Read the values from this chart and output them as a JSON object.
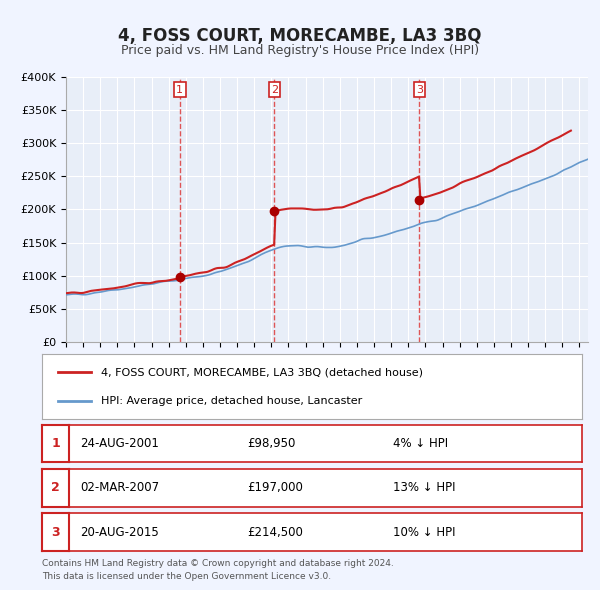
{
  "title": "4, FOSS COURT, MORECAMBE, LA3 3BQ",
  "subtitle": "Price paid vs. HM Land Registry's House Price Index (HPI)",
  "title_fontsize": 13,
  "subtitle_fontsize": 10,
  "bg_color": "#f0f4ff",
  "plot_bg_color": "#f0f4ff",
  "grid_color": "#ffffff",
  "hpi_color": "#6699cc",
  "price_color": "#cc2222",
  "sale_marker_color": "#aa0000",
  "vline_color": "#dd4444",
  "ylim": [
    0,
    400000
  ],
  "yticks": [
    0,
    50000,
    100000,
    150000,
    200000,
    250000,
    300000,
    350000,
    400000
  ],
  "ylabel_format": "£{0}K",
  "legend_entries": [
    "4, FOSS COURT, MORECAMBE, LA3 3BQ (detached house)",
    "HPI: Average price, detached house, Lancaster"
  ],
  "sale_events": [
    {
      "label": "1",
      "date_decimal": 2001.65,
      "price": 98950,
      "pct": "4%",
      "date_str": "24-AUG-2001",
      "price_str": "£98,950"
    },
    {
      "label": "2",
      "date_decimal": 2007.17,
      "price": 197000,
      "pct": "13%",
      "date_str": "02-MAR-2007",
      "price_str": "£197,000"
    },
    {
      "label": "3",
      "date_decimal": 2015.65,
      "price": 214500,
      "pct": "10%",
      "date_str": "20-AUG-2015",
      "price_str": "£214,500"
    }
  ],
  "footer_lines": [
    "Contains HM Land Registry data © Crown copyright and database right 2024.",
    "This data is licensed under the Open Government Licence v3.0."
  ],
  "xmin": 1995,
  "xmax": 2025.5
}
